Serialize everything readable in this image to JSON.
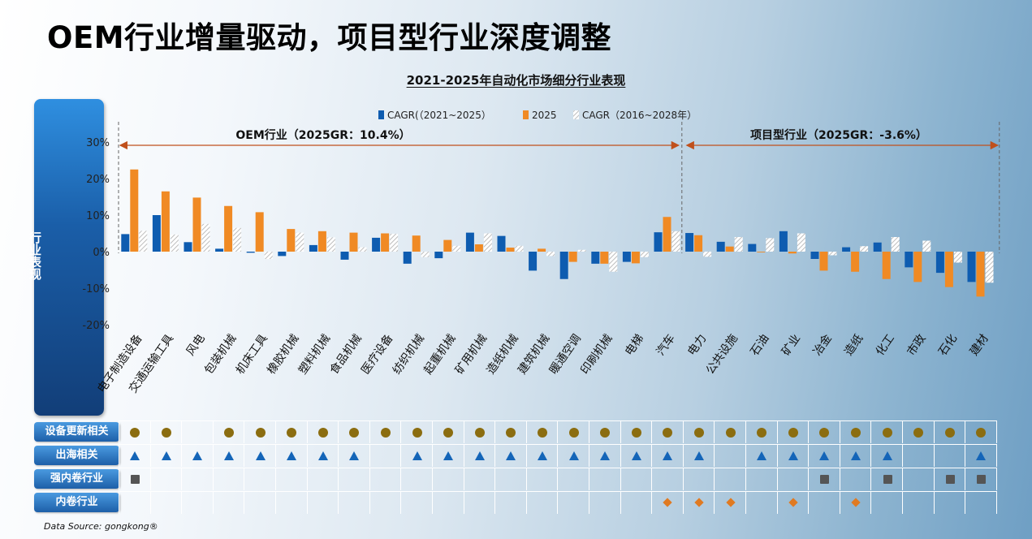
{
  "title": "OEM行业增量驱动，项目型行业深度调整",
  "chart_data": {
    "type": "bar",
    "title": "2021-2025年自动化市场细分行业表现",
    "ylabel": "行业表现",
    "ylim": [
      -20,
      30
    ],
    "yticks": [
      "30%",
      "20%",
      "10%",
      "0%",
      "-10%",
      "-20%"
    ],
    "categories": [
      "电子制造设备",
      "交通运输工具",
      "风电",
      "包装机械",
      "机床工具",
      "橡胶机械",
      "塑料机械",
      "食品机械",
      "医疗设备",
      "纺织机械",
      "起重机械",
      "矿用机械",
      "造纸机械",
      "建筑机械",
      "暖通空调",
      "印刷机械",
      "电梯",
      "汽车",
      "电力",
      "公共设施",
      "石油",
      "矿业",
      "冶金",
      "造纸",
      "化工",
      "市政",
      "石化",
      "建材"
    ],
    "series": [
      {
        "name": "CAGR(（2021~2025）",
        "color": "#0e5cb0",
        "values": [
          4.8,
          10.0,
          2.6,
          0.8,
          -0.3,
          -1.2,
          1.8,
          -2.2,
          3.8,
          -3.3,
          -1.8,
          5.2,
          4.3,
          -5.2,
          -7.5,
          -3.3,
          -2.8,
          5.3,
          5.1,
          2.7,
          2.1,
          5.6,
          -2.0,
          1.2,
          2.5,
          -4.3,
          -5.8,
          -8.3
        ]
      },
      {
        "name": "2025",
        "color": "#f08a24",
        "values": [
          22.5,
          16.5,
          14.8,
          12.5,
          10.8,
          6.2,
          5.6,
          5.2,
          5.0,
          4.4,
          3.2,
          2.0,
          1.1,
          0.8,
          -2.8,
          -3.3,
          -3.2,
          9.5,
          4.5,
          1.4,
          -0.2,
          -0.5,
          -5.2,
          -5.5,
          -7.5,
          -8.3,
          -9.7,
          -12.3
        ]
      },
      {
        "name": "CAGR（2016~2028年）",
        "color": "#d9d9d9",
        "values": [
          5.7,
          4.7,
          7.6,
          6.5,
          -2.0,
          5.2,
          3.9,
          1.2,
          4.9,
          -1.5,
          1.6,
          5.0,
          1.6,
          -1.2,
          0.5,
          -5.5,
          -1.5,
          5.6,
          -1.4,
          4.0,
          3.7,
          5.0,
          -1.0,
          1.5,
          4.0,
          3.0,
          -3.0,
          -8.5
        ]
      }
    ],
    "legend": "top",
    "annotations": [
      {
        "text": "OEM行业（2025GR：10.4%）",
        "from_category": 0,
        "to_category": 17
      },
      {
        "text": "项目型行业（2025GR：-3.6%）",
        "from_category": 18,
        "to_category": 27
      }
    ]
  },
  "attribute_table": {
    "rows": [
      {
        "label": "设备更新相关",
        "symbol": "circle",
        "color": "#8b6d10",
        "marks": [
          1,
          1,
          0,
          1,
          1,
          1,
          1,
          1,
          1,
          1,
          1,
          1,
          1,
          1,
          1,
          1,
          1,
          1,
          1,
          1,
          1,
          1,
          1,
          1,
          1,
          1,
          1,
          1
        ]
      },
      {
        "label": "出海相关",
        "symbol": "triangle",
        "color": "#1465b8",
        "marks": [
          1,
          1,
          1,
          1,
          1,
          1,
          1,
          1,
          0,
          1,
          1,
          1,
          1,
          1,
          1,
          1,
          1,
          1,
          1,
          0,
          1,
          1,
          1,
          1,
          1,
          0,
          0,
          1
        ]
      },
      {
        "label": "强内卷行业",
        "symbol": "square",
        "color": "#555555",
        "marks": [
          1,
          0,
          0,
          0,
          0,
          0,
          0,
          0,
          0,
          0,
          0,
          0,
          0,
          0,
          0,
          0,
          0,
          0,
          0,
          0,
          0,
          0,
          1,
          0,
          1,
          0,
          1,
          1
        ]
      },
      {
        "label": "内卷行业",
        "symbol": "diamond",
        "color": "#e07a22",
        "marks": [
          0,
          0,
          0,
          0,
          0,
          0,
          0,
          0,
          0,
          0,
          0,
          0,
          0,
          0,
          0,
          0,
          0,
          1,
          1,
          1,
          0,
          1,
          0,
          1,
          0,
          0,
          0,
          0
        ]
      }
    ]
  },
  "source": "Data Source: gongkong®"
}
